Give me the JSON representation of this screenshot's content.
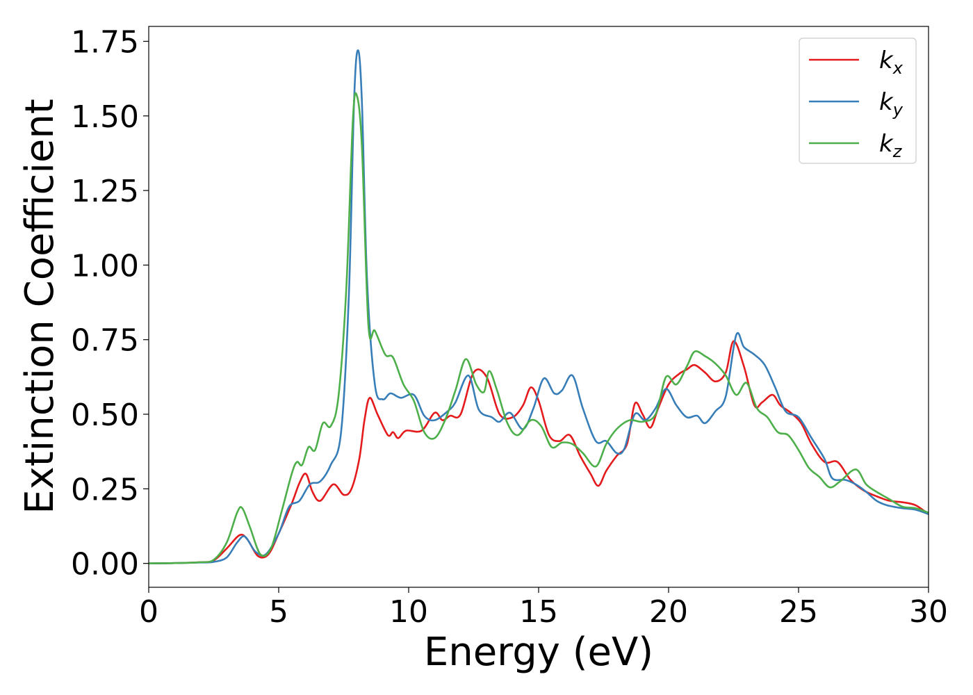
{
  "chart_data": {
    "type": "line",
    "xlabel": "Energy (eV)",
    "ylabel": "Extinction Coefficient",
    "xlim": [
      0,
      30
    ],
    "ylim": [
      -0.08,
      1.8
    ],
    "xticks": [
      "0",
      "5",
      "10",
      "15",
      "20",
      "25",
      "30"
    ],
    "yticks": [
      "0.00",
      "0.25",
      "0.50",
      "0.75",
      "1.00",
      "1.25",
      "1.50",
      "1.75"
    ],
    "grid": false,
    "legend_position": "top-right",
    "series": [
      {
        "name": "k",
        "subscript": "x",
        "color": "#e41a1c",
        "points": [
          [
            0,
            0
          ],
          [
            1,
            0.001
          ],
          [
            2,
            0.004
          ],
          [
            2.5,
            0.01
          ],
          [
            3,
            0.05
          ],
          [
            3.5,
            0.095
          ],
          [
            3.8,
            0.08
          ],
          [
            4.2,
            0.025
          ],
          [
            4.6,
            0.03
          ],
          [
            5,
            0.1
          ],
          [
            5.5,
            0.2
          ],
          [
            5.8,
            0.27
          ],
          [
            6.05,
            0.3
          ],
          [
            6.3,
            0.24
          ],
          [
            6.6,
            0.21
          ],
          [
            7.1,
            0.265
          ],
          [
            7.5,
            0.23
          ],
          [
            7.8,
            0.25
          ],
          [
            8.1,
            0.35
          ],
          [
            8.3,
            0.48
          ],
          [
            8.5,
            0.555
          ],
          [
            8.8,
            0.5
          ],
          [
            9.2,
            0.43
          ],
          [
            9.4,
            0.44
          ],
          [
            9.6,
            0.42
          ],
          [
            9.9,
            0.445
          ],
          [
            10.5,
            0.445
          ],
          [
            11,
            0.505
          ],
          [
            11.3,
            0.48
          ],
          [
            11.6,
            0.495
          ],
          [
            12,
            0.5
          ],
          [
            12.5,
            0.64
          ],
          [
            13,
            0.625
          ],
          [
            13.5,
            0.5
          ],
          [
            14,
            0.49
          ],
          [
            14.4,
            0.53
          ],
          [
            14.7,
            0.59
          ],
          [
            15,
            0.545
          ],
          [
            15.4,
            0.43
          ],
          [
            15.8,
            0.41
          ],
          [
            16.2,
            0.43
          ],
          [
            16.6,
            0.36
          ],
          [
            17,
            0.3
          ],
          [
            17.3,
            0.26
          ],
          [
            17.6,
            0.31
          ],
          [
            18,
            0.36
          ],
          [
            18.4,
            0.4
          ],
          [
            18.7,
            0.535
          ],
          [
            19,
            0.5
          ],
          [
            19.3,
            0.455
          ],
          [
            19.6,
            0.52
          ],
          [
            20,
            0.6
          ],
          [
            20.4,
            0.635
          ],
          [
            20.7,
            0.65
          ],
          [
            21,
            0.665
          ],
          [
            21.4,
            0.64
          ],
          [
            21.8,
            0.61
          ],
          [
            22.2,
            0.64
          ],
          [
            22.5,
            0.745
          ],
          [
            22.9,
            0.66
          ],
          [
            23.3,
            0.53
          ],
          [
            23.6,
            0.54
          ],
          [
            24,
            0.565
          ],
          [
            24.3,
            0.53
          ],
          [
            24.7,
            0.505
          ],
          [
            25.1,
            0.47
          ],
          [
            25.5,
            0.4
          ],
          [
            26,
            0.34
          ],
          [
            26.5,
            0.34
          ],
          [
            27,
            0.28
          ],
          [
            27.5,
            0.245
          ],
          [
            28,
            0.225
          ],
          [
            28.5,
            0.21
          ],
          [
            29,
            0.205
          ],
          [
            29.5,
            0.195
          ],
          [
            30,
            0.165
          ]
        ]
      },
      {
        "name": "k",
        "subscript": "y",
        "color": "#377eb8",
        "points": [
          [
            0,
            0
          ],
          [
            1,
            0.001
          ],
          [
            2,
            0.003
          ],
          [
            2.5,
            0.005
          ],
          [
            3,
            0.02
          ],
          [
            3.4,
            0.07
          ],
          [
            3.7,
            0.09
          ],
          [
            4.1,
            0.04
          ],
          [
            4.5,
            0.03
          ],
          [
            5,
            0.1
          ],
          [
            5.4,
            0.19
          ],
          [
            5.8,
            0.21
          ],
          [
            6.2,
            0.265
          ],
          [
            6.6,
            0.275
          ],
          [
            7,
            0.33
          ],
          [
            7.4,
            0.44
          ],
          [
            7.7,
            0.9
          ],
          [
            7.9,
            1.55
          ],
          [
            8.05,
            1.72
          ],
          [
            8.2,
            1.55
          ],
          [
            8.4,
            0.95
          ],
          [
            8.7,
            0.6
          ],
          [
            9,
            0.55
          ],
          [
            9.3,
            0.57
          ],
          [
            9.7,
            0.555
          ],
          [
            10.2,
            0.565
          ],
          [
            10.6,
            0.495
          ],
          [
            11,
            0.48
          ],
          [
            11.5,
            0.51
          ],
          [
            11.8,
            0.54
          ],
          [
            12.3,
            0.63
          ],
          [
            12.7,
            0.515
          ],
          [
            13.2,
            0.49
          ],
          [
            13.5,
            0.475
          ],
          [
            13.9,
            0.505
          ],
          [
            14.4,
            0.45
          ],
          [
            14.8,
            0.52
          ],
          [
            15.2,
            0.62
          ],
          [
            15.6,
            0.57
          ],
          [
            15.9,
            0.58
          ],
          [
            16.3,
            0.63
          ],
          [
            16.7,
            0.52
          ],
          [
            17.2,
            0.41
          ],
          [
            17.6,
            0.41
          ],
          [
            18,
            0.37
          ],
          [
            18.3,
            0.385
          ],
          [
            18.7,
            0.5
          ],
          [
            19.1,
            0.48
          ],
          [
            19.5,
            0.52
          ],
          [
            19.9,
            0.585
          ],
          [
            20.3,
            0.53
          ],
          [
            20.7,
            0.49
          ],
          [
            21.1,
            0.495
          ],
          [
            21.4,
            0.47
          ],
          [
            21.8,
            0.51
          ],
          [
            22.2,
            0.56
          ],
          [
            22.6,
            0.765
          ],
          [
            22.9,
            0.725
          ],
          [
            23.3,
            0.7
          ],
          [
            23.7,
            0.665
          ],
          [
            24.1,
            0.59
          ],
          [
            24.5,
            0.51
          ],
          [
            25,
            0.49
          ],
          [
            25.5,
            0.42
          ],
          [
            26,
            0.35
          ],
          [
            26.3,
            0.285
          ],
          [
            26.8,
            0.28
          ],
          [
            27.2,
            0.265
          ],
          [
            27.6,
            0.24
          ],
          [
            28,
            0.21
          ],
          [
            28.4,
            0.195
          ],
          [
            29,
            0.185
          ],
          [
            29.5,
            0.18
          ],
          [
            30,
            0.165
          ]
        ]
      },
      {
        "name": "k",
        "subscript": "z",
        "color": "#4daf4a",
        "points": [
          [
            0,
            0
          ],
          [
            1,
            0.001
          ],
          [
            2,
            0.004
          ],
          [
            2.5,
            0.012
          ],
          [
            3,
            0.07
          ],
          [
            3.4,
            0.17
          ],
          [
            3.6,
            0.185
          ],
          [
            3.9,
            0.12
          ],
          [
            4.3,
            0.03
          ],
          [
            4.7,
            0.05
          ],
          [
            5.1,
            0.17
          ],
          [
            5.5,
            0.3
          ],
          [
            5.7,
            0.34
          ],
          [
            5.9,
            0.33
          ],
          [
            6.15,
            0.39
          ],
          [
            6.4,
            0.38
          ],
          [
            6.7,
            0.47
          ],
          [
            7.0,
            0.46
          ],
          [
            7.3,
            0.56
          ],
          [
            7.6,
            0.92
          ],
          [
            7.85,
            1.48
          ],
          [
            8.0,
            1.57
          ],
          [
            8.2,
            1.4
          ],
          [
            8.45,
            0.8
          ],
          [
            8.7,
            0.78
          ],
          [
            9.1,
            0.7
          ],
          [
            9.4,
            0.69
          ],
          [
            9.8,
            0.6
          ],
          [
            10.2,
            0.545
          ],
          [
            10.6,
            0.44
          ],
          [
            11,
            0.42
          ],
          [
            11.4,
            0.48
          ],
          [
            11.8,
            0.58
          ],
          [
            12.2,
            0.685
          ],
          [
            12.6,
            0.6
          ],
          [
            12.9,
            0.575
          ],
          [
            13.1,
            0.645
          ],
          [
            13.4,
            0.58
          ],
          [
            13.8,
            0.47
          ],
          [
            14.2,
            0.43
          ],
          [
            14.7,
            0.48
          ],
          [
            15.1,
            0.46
          ],
          [
            15.5,
            0.39
          ],
          [
            15.9,
            0.405
          ],
          [
            16.3,
            0.4
          ],
          [
            16.7,
            0.37
          ],
          [
            17.2,
            0.325
          ],
          [
            17.6,
            0.4
          ],
          [
            18,
            0.45
          ],
          [
            18.5,
            0.48
          ],
          [
            19,
            0.475
          ],
          [
            19.5,
            0.5
          ],
          [
            19.9,
            0.625
          ],
          [
            20.3,
            0.6
          ],
          [
            20.7,
            0.66
          ],
          [
            21,
            0.71
          ],
          [
            21.4,
            0.695
          ],
          [
            21.8,
            0.67
          ],
          [
            22.2,
            0.63
          ],
          [
            22.6,
            0.565
          ],
          [
            23.0,
            0.605
          ],
          [
            23.4,
            0.52
          ],
          [
            23.8,
            0.49
          ],
          [
            24.2,
            0.44
          ],
          [
            24.6,
            0.43
          ],
          [
            25,
            0.38
          ],
          [
            25.4,
            0.32
          ],
          [
            25.8,
            0.29
          ],
          [
            26.2,
            0.255
          ],
          [
            26.6,
            0.275
          ],
          [
            27.2,
            0.315
          ],
          [
            27.6,
            0.265
          ],
          [
            28,
            0.24
          ],
          [
            28.5,
            0.215
          ],
          [
            29,
            0.19
          ],
          [
            29.5,
            0.185
          ],
          [
            30,
            0.17
          ]
        ]
      }
    ]
  }
}
